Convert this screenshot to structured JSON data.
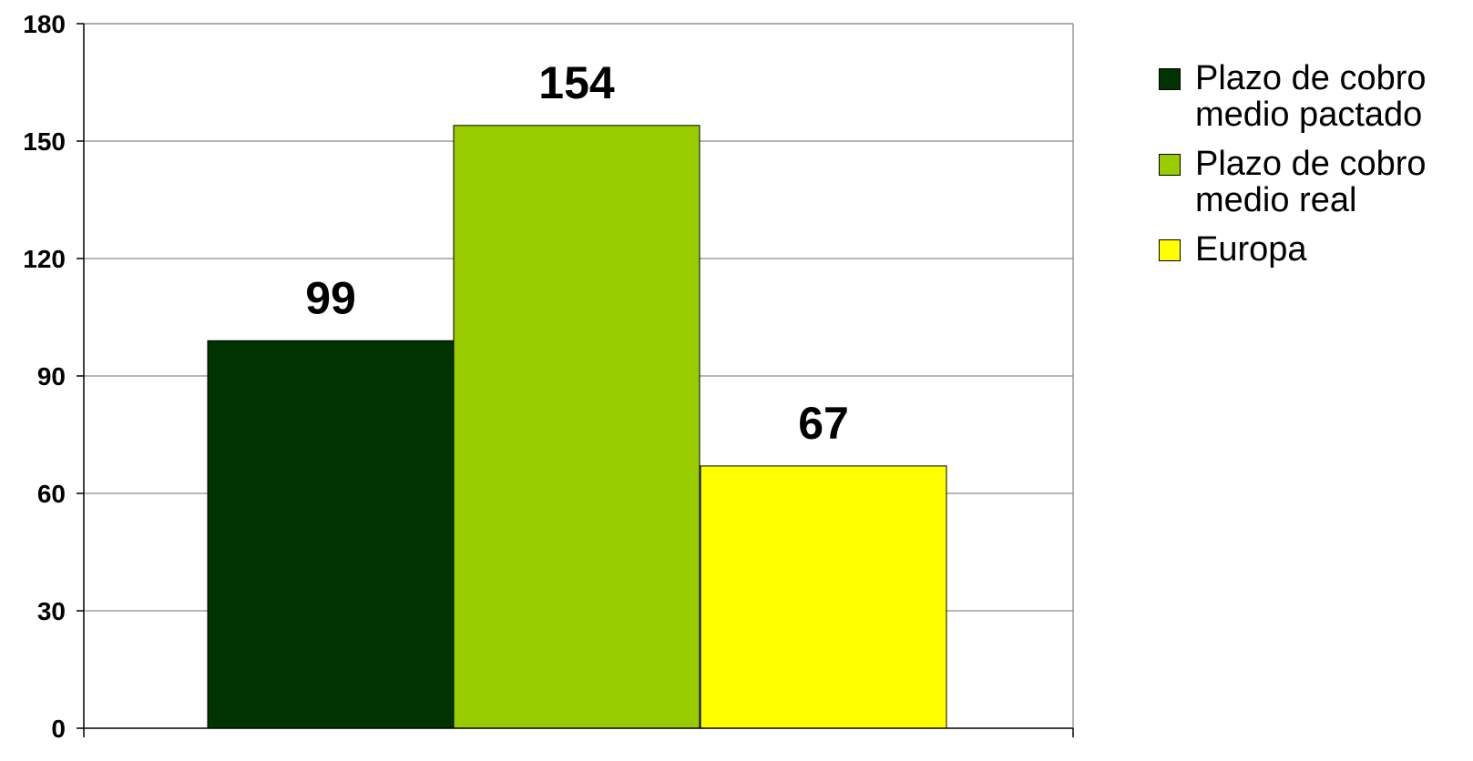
{
  "chart_data": {
    "type": "bar",
    "title": "",
    "xlabel": "",
    "ylabel": "",
    "ylim": [
      0,
      180
    ],
    "yticks": [
      0,
      30,
      60,
      90,
      120,
      150,
      180
    ],
    "grid": true,
    "legend_position": "right",
    "categories": [
      ""
    ],
    "series": [
      {
        "name": "Plazo de cobro medio pactado",
        "values": [
          99
        ],
        "color": "#003300",
        "label": "99"
      },
      {
        "name": "Plazo de cobro medio real",
        "values": [
          154
        ],
        "color": "#99cc00",
        "label": "154"
      },
      {
        "name": "Europa",
        "values": [
          67
        ],
        "color": "#ffff00",
        "label": "67"
      }
    ]
  },
  "legend": {
    "items": [
      {
        "label": "Plazo de cobro medio pactado",
        "color": "#003300"
      },
      {
        "label": "Plazo de cobro medio real",
        "color": "#99cc00"
      },
      {
        "label": "Europa",
        "color": "#ffff00"
      }
    ]
  }
}
